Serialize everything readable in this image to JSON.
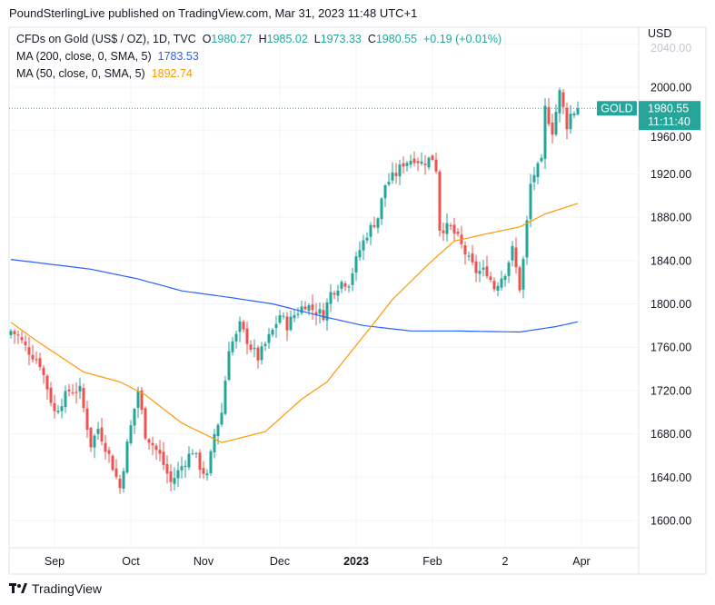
{
  "header": {
    "published": "PoundSterlingLive published on TradingView.com, Mar 31, 2023 11:48 UTC+1"
  },
  "legend": {
    "symbol": "CFDs on Gold (US$ / OZ), 1D, TVC",
    "o_label": "O",
    "o": "1980.27",
    "h_label": "H",
    "h": "1985.02",
    "l_label": "L",
    "l": "1973.33",
    "c_label": "C",
    "c": "1980.55",
    "change": "+0.19 (+0.01%)",
    "ma200_label": "MA (200, close, 0, SMA, 5)",
    "ma200": "1783.53",
    "ma50_label": "MA (50, close, 0, SMA, 5)",
    "ma50": "1892.74"
  },
  "price_tag": {
    "symbol": "GOLD",
    "price": "1980.55",
    "countdown": "11:11:40"
  },
  "footer": {
    "brand": "TradingView"
  },
  "colors": {
    "up": "#26a69a",
    "down": "#ef5350",
    "ma200": "#2962ff",
    "ma50": "#ff9800"
  },
  "chart_data": {
    "type": "candlestick",
    "currency": "USD",
    "ylim": [
      1580,
      2050
    ],
    "yticks": [
      1600,
      1640,
      1680,
      1720,
      1760,
      1800,
      1840,
      1880,
      1920,
      1960,
      2000,
      2040
    ],
    "xticks": [
      {
        "label": "Sep",
        "day": 12
      },
      {
        "label": "Oct",
        "day": 33
      },
      {
        "label": "Nov",
        "day": 53
      },
      {
        "label": "Dec",
        "day": 74
      },
      {
        "label": "2023",
        "day": 95,
        "bold": true
      },
      {
        "label": "Feb",
        "day": 116
      },
      {
        "label": "2",
        "day": 136
      },
      {
        "label": "Apr",
        "day": 157
      }
    ],
    "n_days": 157,
    "close_keypoints": [
      [
        0,
        1775
      ],
      [
        2,
        1770
      ],
      [
        4,
        1760
      ],
      [
        8,
        1745
      ],
      [
        12,
        1700
      ],
      [
        16,
        1720
      ],
      [
        19,
        1720
      ],
      [
        22,
        1670
      ],
      [
        24,
        1685
      ],
      [
        27,
        1660
      ],
      [
        30,
        1630
      ],
      [
        32,
        1670
      ],
      [
        35,
        1720
      ],
      [
        37,
        1680
      ],
      [
        41,
        1660
      ],
      [
        44,
        1635
      ],
      [
        47,
        1650
      ],
      [
        50,
        1665
      ],
      [
        52,
        1650
      ],
      [
        54,
        1640
      ],
      [
        56,
        1680
      ],
      [
        58,
        1700
      ],
      [
        60,
        1760
      ],
      [
        62,
        1770
      ],
      [
        63,
        1780
      ],
      [
        66,
        1760
      ],
      [
        68,
        1750
      ],
      [
        72,
        1775
      ],
      [
        74,
        1790
      ],
      [
        76,
        1780
      ],
      [
        78,
        1790
      ],
      [
        81,
        1800
      ],
      [
        83,
        1795
      ],
      [
        86,
        1790
      ],
      [
        88,
        1810
      ],
      [
        91,
        1820
      ],
      [
        93,
        1820
      ],
      [
        96,
        1850
      ],
      [
        98,
        1865
      ],
      [
        101,
        1880
      ],
      [
        103,
        1910
      ],
      [
        106,
        1920
      ],
      [
        108,
        1930
      ],
      [
        111,
        1935
      ],
      [
        113,
        1930
      ],
      [
        116,
        1935
      ],
      [
        117,
        1925
      ],
      [
        118,
        1870
      ],
      [
        121,
        1870
      ],
      [
        123,
        1860
      ],
      [
        126,
        1840
      ],
      [
        128,
        1830
      ],
      [
        131,
        1830
      ],
      [
        133,
        1815
      ],
      [
        136,
        1830
      ],
      [
        138,
        1850
      ],
      [
        140,
        1815
      ],
      [
        141,
        1840
      ],
      [
        143,
        1910
      ],
      [
        144,
        1920
      ],
      [
        146,
        1930
      ],
      [
        147,
        1980
      ],
      [
        148,
        1970
      ],
      [
        149,
        1960
      ],
      [
        151,
        1995
      ],
      [
        152,
        1980
      ],
      [
        153,
        1965
      ],
      [
        154,
        1975
      ],
      [
        156,
        1980.55
      ]
    ],
    "ma200_keypoints": [
      [
        0,
        1841
      ],
      [
        22,
        1832
      ],
      [
        35,
        1823
      ],
      [
        47,
        1812
      ],
      [
        60,
        1806
      ],
      [
        72,
        1800
      ],
      [
        85,
        1789
      ],
      [
        97,
        1780
      ],
      [
        110,
        1775
      ],
      [
        122,
        1775
      ],
      [
        140,
        1774
      ],
      [
        150,
        1779
      ],
      [
        156,
        1783.5
      ]
    ],
    "ma50_keypoints": [
      [
        0,
        1783
      ],
      [
        7,
        1766
      ],
      [
        20,
        1737
      ],
      [
        30,
        1728
      ],
      [
        37,
        1716
      ],
      [
        47,
        1690
      ],
      [
        58,
        1672
      ],
      [
        70,
        1682
      ],
      [
        80,
        1712
      ],
      [
        87,
        1728
      ],
      [
        97,
        1770
      ],
      [
        105,
        1804
      ],
      [
        115,
        1837
      ],
      [
        122,
        1858
      ],
      [
        130,
        1864
      ],
      [
        140,
        1871
      ],
      [
        147,
        1883
      ],
      [
        156,
        1892.7
      ]
    ],
    "last_price": 1980.55
  }
}
